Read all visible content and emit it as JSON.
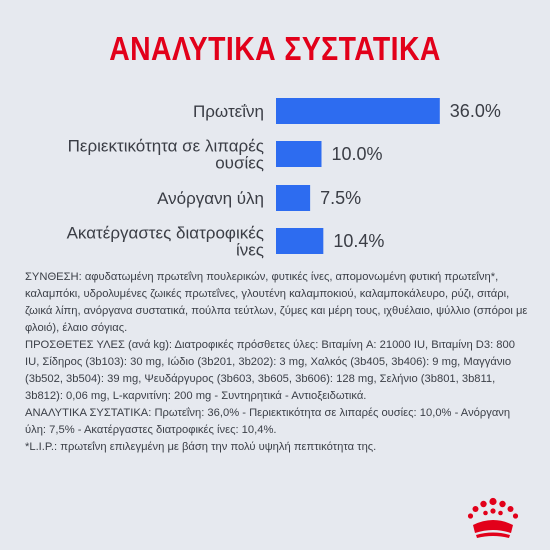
{
  "title": "ΑΝΑΛΥΤΙΚΑ ΣΥΣΤΑΤΙΚΑ",
  "bar_color": "#2d6cf0",
  "title_color": "#e2001a",
  "chart_data": {
    "type": "bar",
    "orientation": "horizontal",
    "categories": [
      [
        "Πρωτεΐνη"
      ],
      [
        "Περιεκτικότητα σε λιπαρές",
        "ουσίες"
      ],
      [
        "Ανόργανη ύλη"
      ],
      [
        "Ακατέργαστες διατροφικές",
        "ίνες"
      ]
    ],
    "values": [
      36.0,
      10.0,
      7.5,
      10.4
    ],
    "value_labels": [
      "36.0%",
      "10.0%",
      "7.5%",
      "10.4%"
    ],
    "unit": "%",
    "grid": false,
    "legend": "none"
  },
  "composition": [
    "ΣΥΝΘΕΣΗ: αφυδατωμένη πρωτεΐνη πουλερικών, φυτικές ίνες, απομονωμένη φυτική πρωτεΐνη*, καλαμπόκι, υδρολυμένες ζωικές πρωτεΐνες, γλουτένη καλαμποκιού, καλαμποκάλευρο, ρύζι, σιτάρι, ζωικά λίπη, ανόργανα συστατικά, πούλπα τεύτλων, ζύμες και μέρη τους, ιχθυέλαιο, ψύλλιο (σπόροι με φλοιό), έλαιο σόγιας.",
    "ΠΡΟΣΘΕΤΕΣ ΥΛΕΣ (ανά kg): Διατροφικές πρόσθετες ύλες: Βιταμίνη A: 21000 IU, Βιταμίνη D3: 800 IU, Σίδηρος (3b103): 30 mg, Ιώδιο (3b201, 3b202): 3 mg, Χαλκός (3b405, 3b406): 9 mg, Μαγγάνιο (3b502, 3b504): 39 mg, Ψευδάργυρος (3b603, 3b605, 3b606): 128 mg, Σελήνιο (3b801, 3b811, 3b812): 0,06 mg, L-καρνιτίνη: 200 mg - Συντηρητικά - Αντιοξειδωτικά.",
    "ΑΝΑΛΥΤΙΚΑ ΣΥΣΤΑΤΙΚΑ: Πρωτεΐνη: 36,0% - Περιεκτικότητα σε λιπαρές ουσίες: 10,0% - Ανόργανη ύλη: 7,5% - Ακατέργαστες διατροφικές ίνες: 10,4%.",
    "*L.I.P.: πρωτεΐνη επιλεγμένη με βάση την πολύ υψηλή πεπτικότητα της."
  ]
}
